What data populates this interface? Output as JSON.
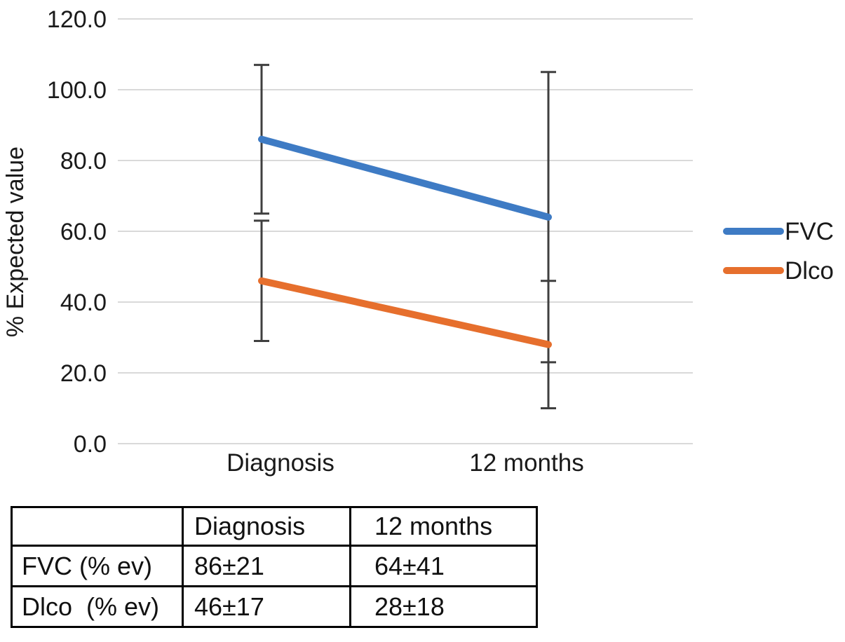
{
  "chart_data": {
    "type": "line",
    "categories": [
      "Diagnosis",
      "12 months"
    ],
    "series": [
      {
        "name": "FVC",
        "values": [
          86,
          64
        ],
        "errors": [
          21,
          41
        ],
        "color": "#3E7BC4"
      },
      {
        "name": "Dlco",
        "values": [
          46,
          28
        ],
        "errors": [
          17,
          18
        ],
        "color": "#E66F2D"
      }
    ],
    "title": "",
    "xlabel": "",
    "ylabel": "% Expected value",
    "ylim": [
      0,
      120
    ],
    "ytick_step": 20,
    "ytick_labels": [
      "0.0",
      "20.0",
      "40.0",
      "60.0",
      "80.0",
      "100.0",
      "120.0"
    ],
    "grid": true,
    "legend_position": "right",
    "gridline_color": "#D9D9D9",
    "error_bar_color": "#3F3F3F",
    "text_color": "#1A1A1A"
  },
  "table": {
    "headers": [
      "",
      "Diagnosis",
      "12 months"
    ],
    "rows": [
      {
        "cells": [
          "FVC (% ev)",
          "86±21",
          "64±41"
        ]
      },
      {
        "cells": [
          "Dlco  (% ev)",
          "46±17",
          "28±18"
        ]
      }
    ]
  }
}
